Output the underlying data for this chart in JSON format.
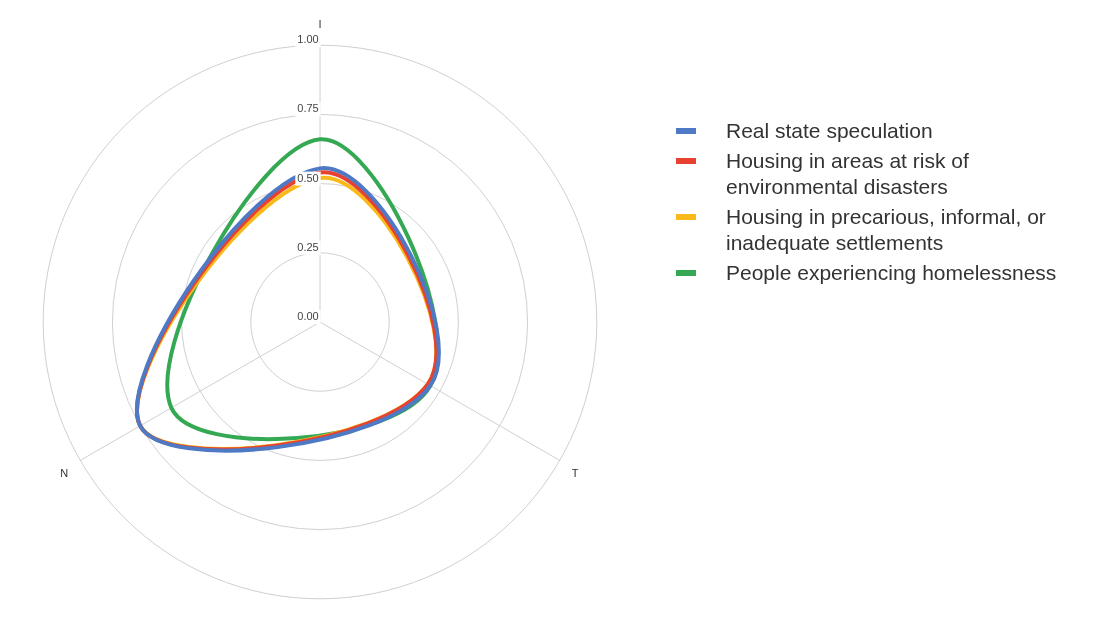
{
  "chart_data": {
    "type": "radar",
    "categories": [
      "I",
      "T",
      "N"
    ],
    "series": [
      {
        "name": "Real state speculation",
        "color": "#4e79c4",
        "values": [
          0.555,
          0.46,
          0.75
        ]
      },
      {
        "name": "Housing in areas at risk of environmental disasters",
        "color": "#e8412f",
        "values": [
          0.54,
          0.45,
          0.75
        ]
      },
      {
        "name": "Housing in precarious, informal, or inadequate settlements",
        "color": "#f9b91a",
        "values": [
          0.52,
          0.45,
          0.75
        ]
      },
      {
        "name": "People experiencing homelessness",
        "color": "#34a853",
        "values": [
          0.66,
          0.46,
          0.62
        ]
      }
    ],
    "ylim": [
      0,
      1
    ],
    "yticks": [
      {
        "value": 0,
        "label": "0.00"
      },
      0.25,
      {
        "value": 0.5,
        "label": "0.50"
      },
      0.75,
      {
        "value": 1,
        "label": "1.00"
      }
    ],
    "grid": true,
    "legend": "right"
  }
}
